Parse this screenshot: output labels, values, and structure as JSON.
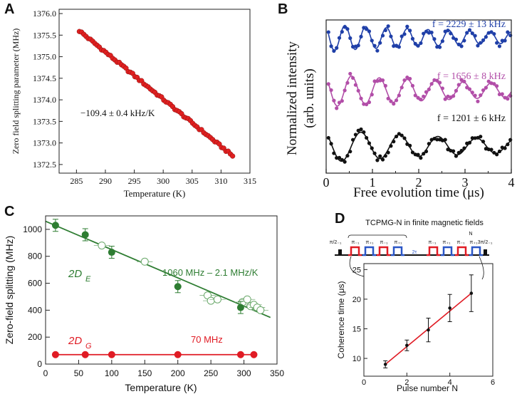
{
  "chart_data": [
    {
      "panel": "A",
      "type": "scatter",
      "xlabel": "Temperature (K)",
      "ylabel": "Zero field splitting parameter (MHz)",
      "xlim": [
        282,
        315
      ],
      "ylim": [
        1372.3,
        1376.1
      ],
      "xticks": [
        285,
        290,
        295,
        300,
        305,
        310,
        315
      ],
      "yticks": [
        1372.5,
        1373.0,
        1373.5,
        1374.0,
        1374.5,
        1375.0,
        1375.5,
        1376.0
      ],
      "ytick_labels": [
        "1372.5",
        "1373.0",
        "1373.5",
        "1374.0",
        "1374.5",
        "1375.0",
        "1375.5",
        "1376.0"
      ],
      "annotation": "−109.4 ± 0.4 kHz/K",
      "fit": {
        "slope_mhz_per_k": -0.1094,
        "x0": 285.5,
        "y0": 1375.6,
        "x1": 312.0,
        "y1": 1372.7
      },
      "points": {
        "x_start": 285.5,
        "x_end": 312.0,
        "count": 70
      },
      "colors": {
        "points": "#e02020",
        "fit": "#2a3f9e"
      }
    },
    {
      "panel": "B",
      "type": "line",
      "xlabel": "Free evolution time (μs)",
      "ylabel_line1": "Normalized intensity",
      "ylabel_line2": "(arb. units)",
      "xlim": [
        0,
        4
      ],
      "xticks": [
        0,
        1,
        2,
        3,
        4
      ],
      "series": [
        {
          "name": "f = 2229 ± 13 kHz",
          "freq_mhz": 2.229,
          "color": "#1f3fa8"
        },
        {
          "name": "f = 1656 ± 8 kHz",
          "freq_mhz": 1.656,
          "color": "#b24ea8"
        },
        {
          "name": "f = 1201 ± 6 kHz",
          "freq_mhz": 1.201,
          "color": "#111111"
        }
      ]
    },
    {
      "panel": "C",
      "type": "scatter",
      "xlabel": "Temperature (K)",
      "ylabel": "Zero-field splitting (MHz)",
      "xlim": [
        0,
        350
      ],
      "ylim": [
        0,
        1100
      ],
      "xticks": [
        0,
        50,
        100,
        150,
        200,
        250,
        300,
        350
      ],
      "yticks": [
        0,
        200,
        400,
        600,
        800,
        1000
      ],
      "series": [
        {
          "name": "2D_E filled",
          "label_main": "2D",
          "label_sub": "E",
          "color": "#2e7d32",
          "x": [
            15,
            60,
            100,
            200,
            295
          ],
          "y": [
            1030,
            960,
            830,
            575,
            420
          ]
        },
        {
          "name": "2D_E open",
          "color": "#2e7d32",
          "x": [
            85,
            150,
            245,
            250,
            260,
            298,
            305,
            310,
            315,
            320,
            325
          ],
          "y": [
            880,
            760,
            510,
            470,
            480,
            460,
            480,
            430,
            440,
            420,
            400
          ]
        },
        {
          "name": "2D_G",
          "label_main": "2D",
          "label_sub": "G",
          "color": "#e01b24",
          "x": [
            15,
            60,
            100,
            200,
            295,
            315
          ],
          "y": [
            70,
            70,
            70,
            70,
            70,
            70
          ]
        }
      ],
      "fit_E": {
        "label": "1060 MHz – 2.1 MHz/K",
        "intercept": 1060,
        "slope": -2.1,
        "x_range": [
          0,
          340
        ]
      },
      "fit_G": {
        "label": "70 MHz",
        "value": 70,
        "x_range": [
          15,
          315
        ]
      }
    },
    {
      "panel": "D",
      "type": "scatter",
      "title": "TCPMG-N in finite magnetic fields",
      "xlabel": "Pulse number N",
      "ylabel": "Coherence time (μs)",
      "xlim": [
        0,
        6
      ],
      "ylim": [
        7,
        26
      ],
      "xticks": [
        0,
        2,
        4,
        6
      ],
      "yticks": [
        10,
        15,
        20,
        25
      ],
      "x": [
        1,
        2,
        3,
        4,
        5
      ],
      "y": [
        9.0,
        12.2,
        14.8,
        18.5,
        21.0
      ],
      "err": [
        0.6,
        0.9,
        2.0,
        2.3,
        3.1
      ],
      "fit": {
        "x0": 1,
        "y0": 9.0,
        "x1": 5,
        "y1": 21.0
      },
      "pulse_labels": [
        "π/2₋₁",
        "π₋₁",
        "π₊₁",
        "π₋₁",
        "π₊₁",
        "2τ",
        "π₋₁",
        "π₊₁",
        "π₋₁",
        "π₊₁",
        "N",
        "3π/2₋₁"
      ],
      "colors": {
        "line": "#e01b24",
        "points": "#111111",
        "pulse_red": "#e01b24",
        "pulse_blue": "#2a56c6"
      }
    }
  ],
  "panel_labels": {
    "a": "A",
    "b": "B",
    "c": "C",
    "d": "D"
  }
}
